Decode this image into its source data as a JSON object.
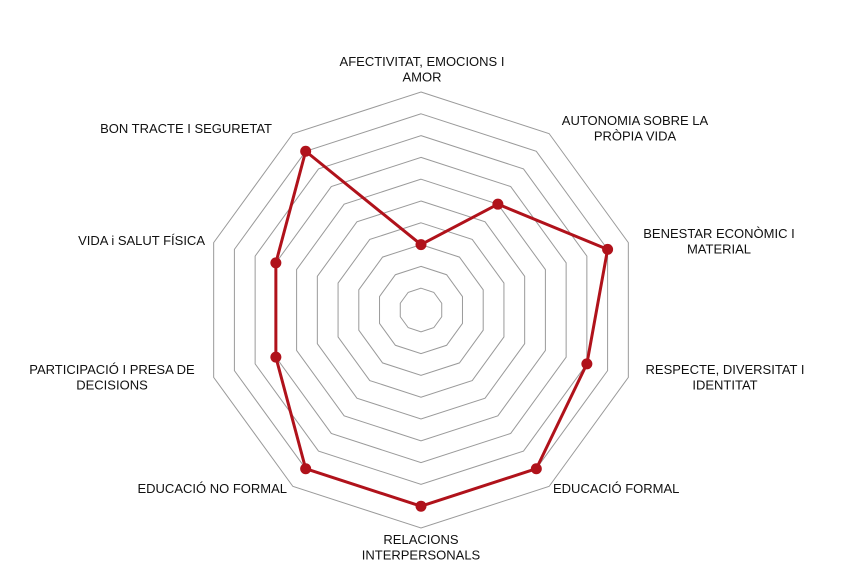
{
  "chart_data": {
    "type": "radar",
    "title": "",
    "grid": true,
    "rlim": [
      0,
      10
    ],
    "rings": 10,
    "series_color": "#b0121b",
    "grid_color": "#9a9a9a",
    "categories": [
      [
        "AFECTIVITAT,  EMOCIONS I",
        "AMOR"
      ],
      [
        "AUTONOMIA SOBRE LA",
        "PRÒPIA VIDA"
      ],
      [
        "BENESTAR ECONÒMIC I",
        "MATERIAL"
      ],
      [
        "RESPECTE, DIVERSITAT I",
        "IDENTITAT"
      ],
      [
        "EDUCACIÓ FORMAL"
      ],
      [
        "RELACIONS",
        "INTERPERSONALS"
      ],
      [
        "EDUCACIÓ NO FORMAL"
      ],
      [
        "PARTICIPACIÓ  I PRESA DE",
        "DECISIONS"
      ],
      [
        "VIDA i SALUT FÍSICA"
      ],
      [
        "BON TRACTE  I SEGURETAT"
      ]
    ],
    "values": [
      3,
      6,
      9,
      8,
      9,
      9,
      9,
      7,
      7,
      9
    ]
  }
}
